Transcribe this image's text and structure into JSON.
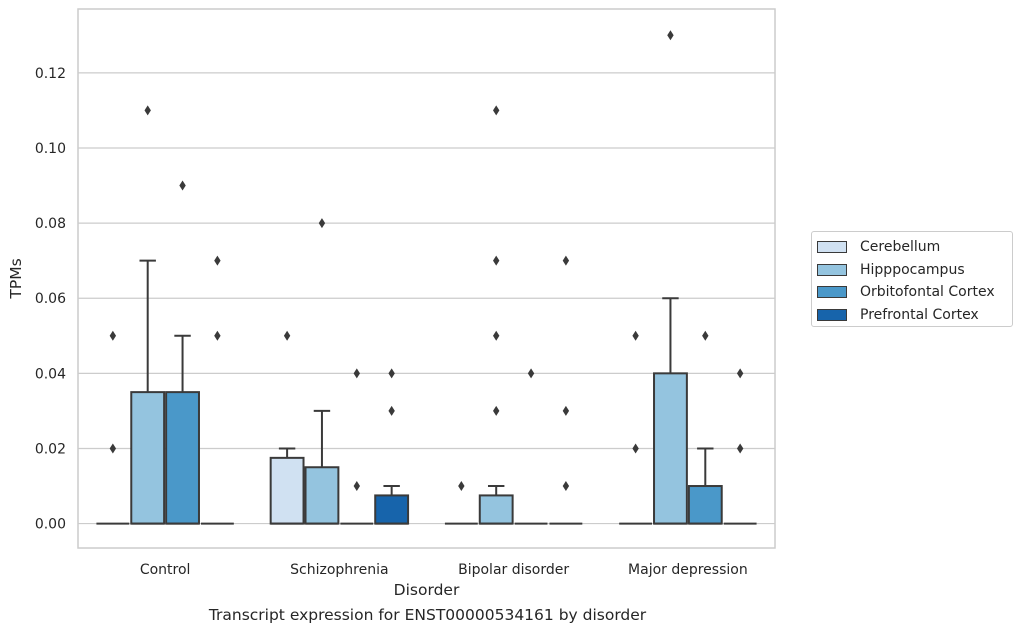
{
  "caption": "Transcript expression for ENST00000534161 by disorder",
  "chart_data": {
    "type": "box",
    "title": "",
    "xlabel": "Disorder",
    "ylabel": "TPMs",
    "categories": [
      "Control",
      "Schizophrenia",
      "Bipolar disorder",
      "Major depression"
    ],
    "ylim": [
      -0.0065,
      0.137
    ],
    "yticks": [
      "0.00",
      "0.02",
      "0.04",
      "0.06",
      "0.08",
      "0.10",
      "0.12"
    ],
    "grid": true,
    "legend_position": "right",
    "series": [
      {
        "name": "Cerebellum",
        "color": "#d0e1f2",
        "boxes": [
          {
            "q1": 0,
            "median": 0,
            "q3": 0,
            "whisker_low": 0,
            "whisker_high": 0,
            "outliers": [
              0.02,
              0.05
            ]
          },
          {
            "q1": 0,
            "median": 0,
            "q3": 0.0175,
            "whisker_low": 0,
            "whisker_high": 0.02,
            "outliers": [
              0.05
            ]
          },
          {
            "q1": 0,
            "median": 0,
            "q3": 0,
            "whisker_low": 0,
            "whisker_high": 0,
            "outliers": [
              0.01
            ]
          },
          {
            "q1": 0,
            "median": 0,
            "q3": 0,
            "whisker_low": 0,
            "whisker_high": 0,
            "outliers": [
              0.02,
              0.05
            ]
          }
        ]
      },
      {
        "name": "Hipppocampus",
        "color": "#94c4df",
        "boxes": [
          {
            "q1": 0,
            "median": 0,
            "q3": 0.035,
            "whisker_low": 0,
            "whisker_high": 0.07,
            "outliers": [
              0.11
            ]
          },
          {
            "q1": 0,
            "median": 0,
            "q3": 0.015,
            "whisker_low": 0,
            "whisker_high": 0.03,
            "outliers": [
              0.08
            ]
          },
          {
            "q1": 0,
            "median": 0,
            "q3": 0.0075,
            "whisker_low": 0,
            "whisker_high": 0.01,
            "outliers": [
              0.03,
              0.05,
              0.07,
              0.11
            ]
          },
          {
            "q1": 0,
            "median": 0,
            "q3": 0.04,
            "whisker_low": 0,
            "whisker_high": 0.06,
            "outliers": [
              0.13
            ]
          }
        ]
      },
      {
        "name": "Orbitofontal Cortex",
        "color": "#4a98c9",
        "boxes": [
          {
            "q1": 0,
            "median": 0,
            "q3": 0.035,
            "whisker_low": 0,
            "whisker_high": 0.05,
            "outliers": [
              0.09
            ]
          },
          {
            "q1": 0,
            "median": 0,
            "q3": 0,
            "whisker_low": 0,
            "whisker_high": 0,
            "outliers": [
              0.01,
              0.04
            ]
          },
          {
            "q1": 0,
            "median": 0,
            "q3": 0,
            "whisker_low": 0,
            "whisker_high": 0,
            "outliers": [
              0.04
            ]
          },
          {
            "q1": 0,
            "median": 0,
            "q3": 0.01,
            "whisker_low": 0,
            "whisker_high": 0.02,
            "outliers": [
              0.05
            ]
          }
        ]
      },
      {
        "name": "Prefrontal Cortex",
        "color": "#1764ab",
        "boxes": [
          {
            "q1": 0,
            "median": 0,
            "q3": 0,
            "whisker_low": 0,
            "whisker_high": 0,
            "outliers": [
              0.05,
              0.07
            ]
          },
          {
            "q1": 0,
            "median": 0,
            "q3": 0.0075,
            "whisker_low": 0,
            "whisker_high": 0.01,
            "outliers": [
              0.03,
              0.04
            ]
          },
          {
            "q1": 0,
            "median": 0,
            "q3": 0,
            "whisker_low": 0,
            "whisker_high": 0,
            "outliers": [
              0.01,
              0.03,
              0.07
            ]
          },
          {
            "q1": 0,
            "median": 0,
            "q3": 0,
            "whisker_low": 0,
            "whisker_high": 0,
            "outliers": [
              0.02,
              0.04
            ]
          }
        ]
      }
    ]
  }
}
